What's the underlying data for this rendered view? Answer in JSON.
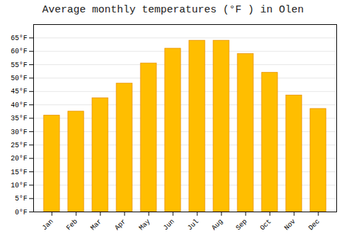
{
  "chart_data": {
    "type": "bar",
    "title": "Average monthly temperatures (°F ) in Olen",
    "categories": [
      "Jan",
      "Feb",
      "Mar",
      "Apr",
      "May",
      "Jun",
      "Jul",
      "Aug",
      "Sep",
      "Oct",
      "Nov",
      "Dec"
    ],
    "values": [
      36.0,
      37.5,
      42.5,
      48.0,
      55.5,
      61.0,
      64.0,
      64.0,
      59.0,
      52.0,
      43.5,
      38.5
    ],
    "color": "#FFBE00",
    "ylim": [
      0,
      70
    ],
    "yticks": [
      {
        "value": 0,
        "label": "0°F"
      },
      {
        "value": 5,
        "label": "5°F"
      },
      {
        "value": 10,
        "label": "10°F"
      },
      {
        "value": 15,
        "label": "15°F"
      },
      {
        "value": 20,
        "label": "20°F"
      },
      {
        "value": 25,
        "label": "25°F"
      },
      {
        "value": 30,
        "label": "30°F"
      },
      {
        "value": 35,
        "label": "35°F"
      },
      {
        "value": 40,
        "label": "40°F"
      },
      {
        "value": 45,
        "label": "45°F"
      },
      {
        "value": 50,
        "label": "50°F"
      },
      {
        "value": 55,
        "label": "55°F"
      },
      {
        "value": 60,
        "label": "60°F"
      },
      {
        "value": 65,
        "label": "65°F"
      }
    ],
    "grid": true
  }
}
